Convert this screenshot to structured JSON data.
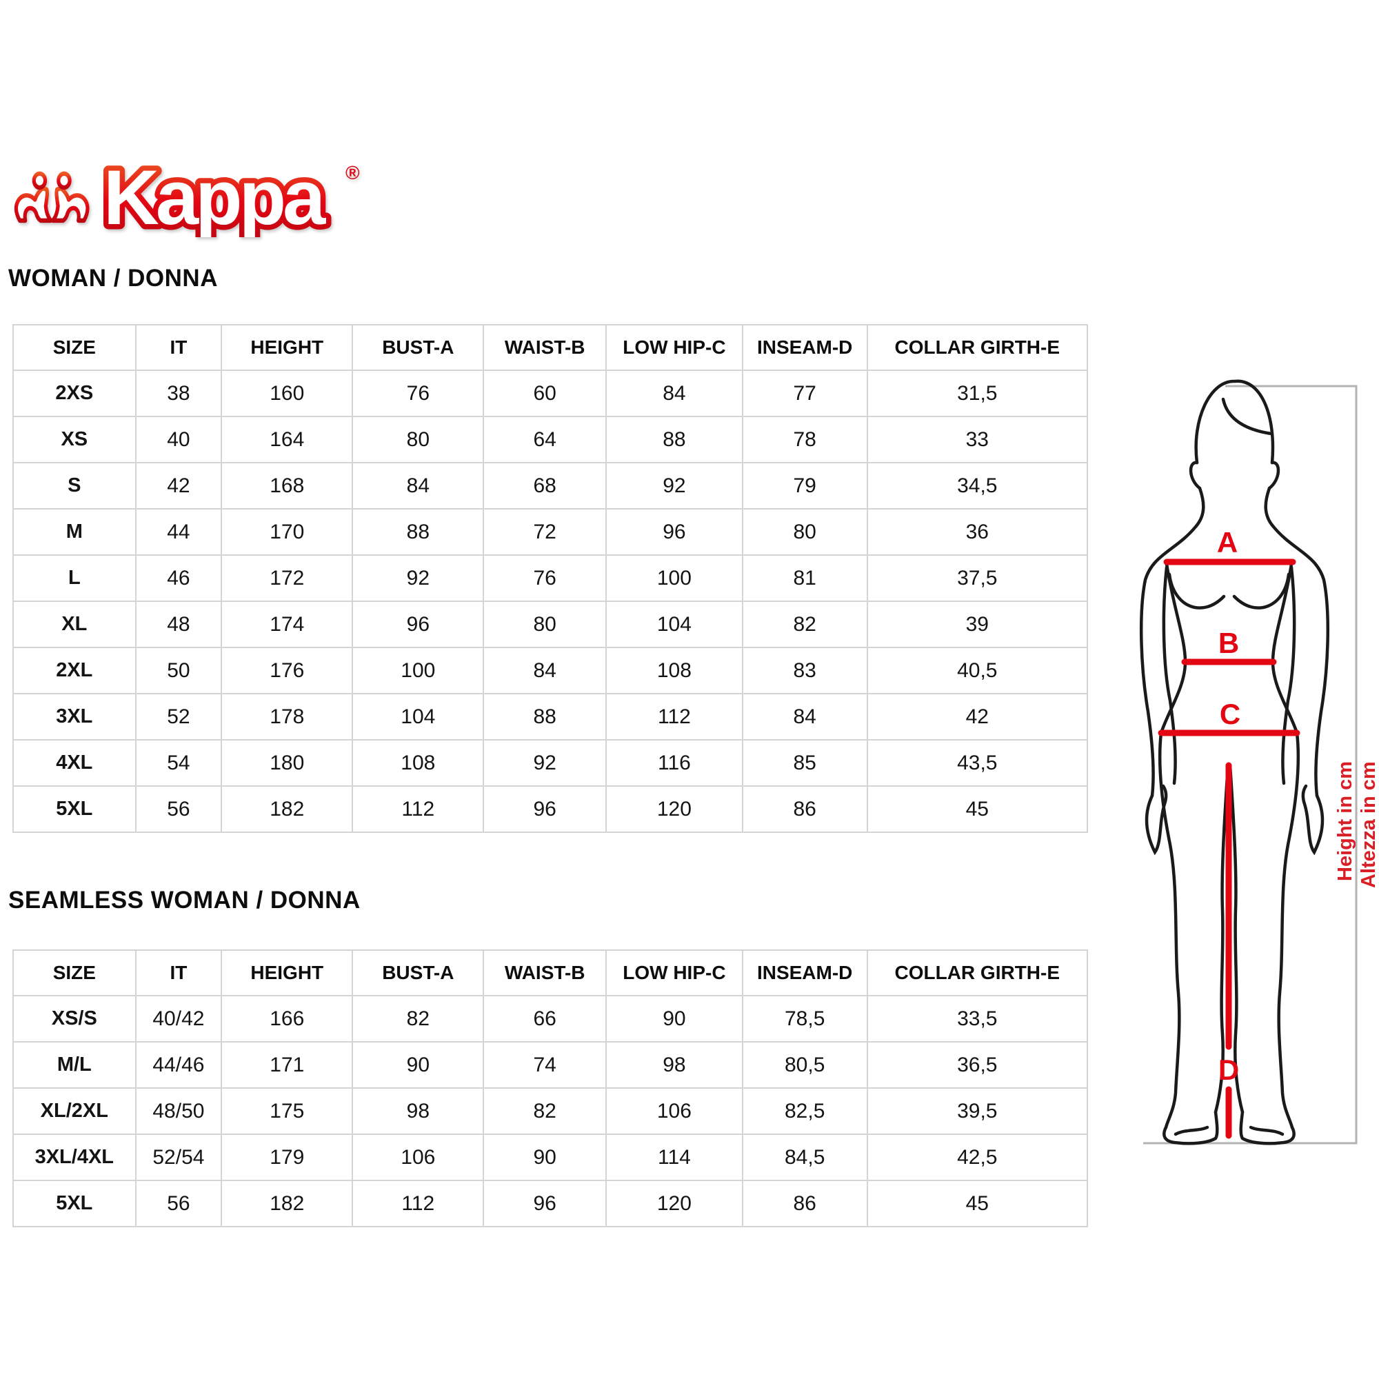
{
  "brand": {
    "logo_text": "Kappa",
    "registered_mark": "®"
  },
  "sections": [
    {
      "heading": "WOMAN / DONNA",
      "table": {
        "columns": [
          "SIZE",
          "IT",
          "HEIGHT",
          "BUST-A",
          "WAIST-B",
          "LOW HIP-C",
          "INSEAM-D",
          "COLLAR GIRTH-E"
        ],
        "rows": [
          [
            "2XS",
            "38",
            "160",
            "76",
            "60",
            "84",
            "77",
            "31,5"
          ],
          [
            "XS",
            "40",
            "164",
            "80",
            "64",
            "88",
            "78",
            "33"
          ],
          [
            "S",
            "42",
            "168",
            "84",
            "68",
            "92",
            "79",
            "34,5"
          ],
          [
            "M",
            "44",
            "170",
            "88",
            "72",
            "96",
            "80",
            "36"
          ],
          [
            "L",
            "46",
            "172",
            "92",
            "76",
            "100",
            "81",
            "37,5"
          ],
          [
            "XL",
            "48",
            "174",
            "96",
            "80",
            "104",
            "82",
            "39"
          ],
          [
            "2XL",
            "50",
            "176",
            "100",
            "84",
            "108",
            "83",
            "40,5"
          ],
          [
            "3XL",
            "52",
            "178",
            "104",
            "88",
            "112",
            "84",
            "42"
          ],
          [
            "4XL",
            "54",
            "180",
            "108",
            "92",
            "116",
            "85",
            "43,5"
          ],
          [
            "5XL",
            "56",
            "182",
            "112",
            "96",
            "120",
            "86",
            "45"
          ]
        ]
      }
    },
    {
      "heading": "SEAMLESS WOMAN / DONNA",
      "table": {
        "columns": [
          "SIZE",
          "IT",
          "HEIGHT",
          "BUST-A",
          "WAIST-B",
          "LOW HIP-C",
          "INSEAM-D",
          "COLLAR GIRTH-E"
        ],
        "rows": [
          [
            "XS/S",
            "40/42",
            "166",
            "82",
            "66",
            "90",
            "78,5",
            "33,5"
          ],
          [
            "M/L",
            "44/46",
            "171",
            "90",
            "74",
            "98",
            "80,5",
            "36,5"
          ],
          [
            "XL/2XL",
            "48/50",
            "175",
            "98",
            "82",
            "106",
            "82,5",
            "39,5"
          ],
          [
            "3XL/4XL",
            "52/54",
            "179",
            "106",
            "90",
            "114",
            "84,5",
            "42,5"
          ],
          [
            "5XL",
            "56",
            "182",
            "112",
            "96",
            "120",
            "86",
            "45"
          ]
        ]
      }
    }
  ],
  "diagram": {
    "measure_labels": [
      "A",
      "B",
      "C",
      "D"
    ],
    "height_note_en": "Height in cm",
    "height_note_it": "Altezza in cm"
  },
  "colors": {
    "accent_red": "#e30613",
    "note_red": "#d91f26",
    "outline_black": "#1a1a1a",
    "bracket_gray": "#b3b3b3",
    "border_gray": "#d4d4d4"
  }
}
